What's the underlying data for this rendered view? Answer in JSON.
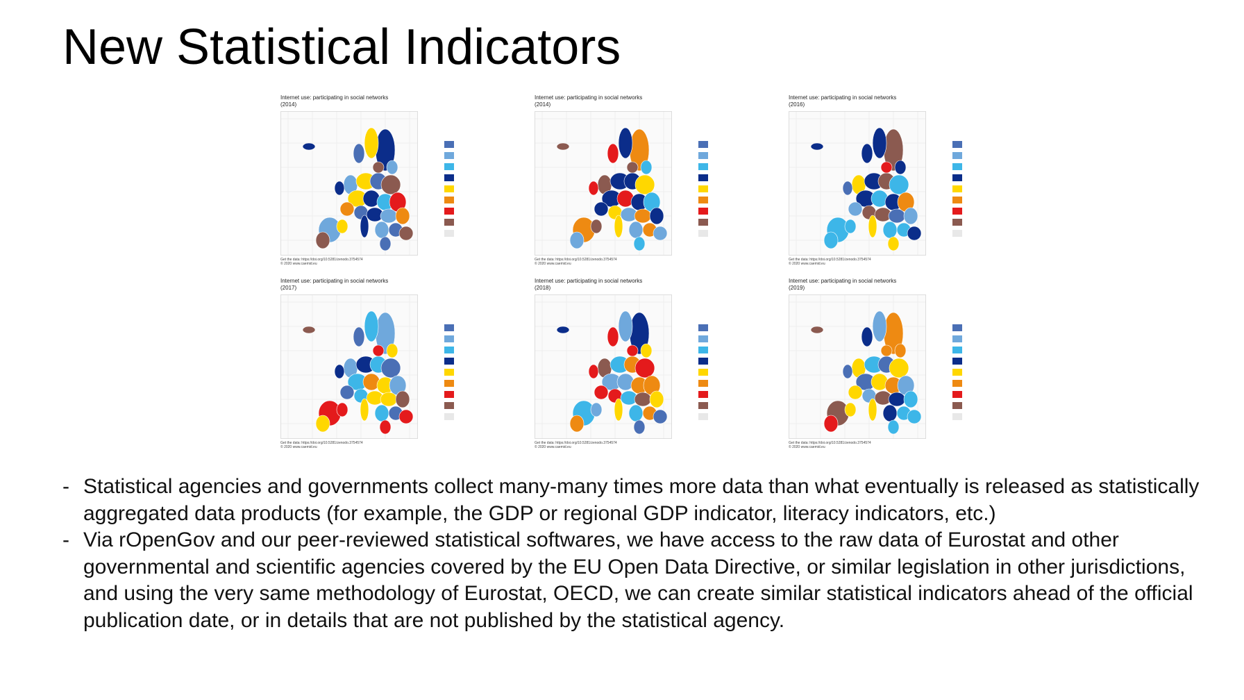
{
  "slide": {
    "title": "New Statistical Indicators"
  },
  "maps": [
    {
      "title_line1": "Internet use: participating in social networks",
      "title_line2": "(2014)",
      "source_line1": "Get the data: https://doi.org/10.5281/zenodo.3754574",
      "source_line2": "© 2020 www.caemid.eu"
    },
    {
      "title_line1": "Internet use: participating in social networks",
      "title_line2": "(2014)",
      "source_line1": "Get the data: https://doi.org/10.5281/zenodo.3754574",
      "source_line2": "© 2020 www.caemid.eu"
    },
    {
      "title_line1": "Internet use: participating in social networks",
      "title_line2": "(2016)",
      "source_line1": "Get the data: https://doi.org/10.5281/zenodo.3754574",
      "source_line2": "© 2020 www.caemid.eu"
    },
    {
      "title_line1": "Internet use: participating in social networks",
      "title_line2": "(2017)",
      "source_line1": "Get the data: https://doi.org/10.5281/zenodo.3754574",
      "source_line2": "© 2020 www.caemid.eu"
    },
    {
      "title_line1": "Internet use: participating in social networks",
      "title_line2": "(2018)",
      "source_line1": "Get the data: https://doi.org/10.5281/zenodo.3754574",
      "source_line2": "© 2020 www.caemid.eu"
    },
    {
      "title_line1": "Internet use: participating in social networks",
      "title_line2": "(2019)",
      "source_line1": "Get the data: https://doi.org/10.5281/zenodo.3754574",
      "source_line2": "© 2020 www.caemid.eu"
    }
  ],
  "legend": {
    "colors": [
      "#4a6fb5",
      "#6fa8dc",
      "#3db6e8",
      "#0b2d8a",
      "#ffd700",
      "#ee8a12",
      "#e41a1c",
      "#8b5a50",
      "#e8e8e8"
    ]
  },
  "bullets": [
    {
      "dash": "-",
      "text": "Statistical agencies and governments collect many-many times more data than what eventually is released as statistically aggregated data products (for example, the GDP or regional GDP indicator, literacy indicators, etc.)"
    },
    {
      "dash": "-",
      "text": "Via rOpenGov and our peer-reviewed statistical softwares, we have access to the raw data of Eurostat and other governmental and scientific agencies covered by the EU Open Data Directive, or similar legislation in other jurisdictions, and using the very same methodology of Eurostat, OECD, we can create similar statistical indicators ahead of the official publication date, or in details that are not published by the statistical agency."
    }
  ]
}
